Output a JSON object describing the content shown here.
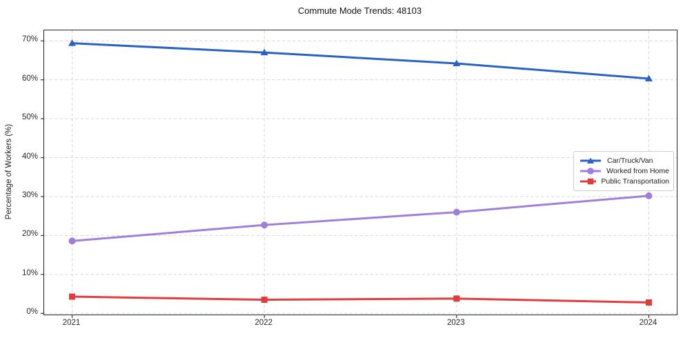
{
  "chart_data": {
    "type": "line",
    "title": "Commute Mode Trends: 48103",
    "xlabel": "",
    "ylabel": "Percentage of Workers (%)",
    "x": [
      2021,
      2022,
      2023,
      2024
    ],
    "x_tick_labels": [
      "2021",
      "2022",
      "2023",
      "2024"
    ],
    "y_ticks": [
      0,
      10,
      20,
      30,
      40,
      50,
      60,
      70
    ],
    "y_tick_suffix": "%",
    "xlim": [
      2020.8545,
      2024.1455
    ],
    "ylim": [
      -0.3,
      72.7
    ],
    "grid": true,
    "grid_style": "dashed",
    "legend_position": "center-right",
    "series": [
      {
        "name": "Car/Truck/Van",
        "values": [
          69.4,
          67.0,
          64.2,
          60.3
        ],
        "color": "#2a62c4",
        "marker": "triangle"
      },
      {
        "name": "Worked from Home",
        "values": [
          18.6,
          22.7,
          26.0,
          30.2
        ],
        "color": "#9f7fdb",
        "marker": "circle"
      },
      {
        "name": "Public Transportation",
        "values": [
          4.3,
          3.5,
          3.8,
          2.8
        ],
        "color": "#e03c3c",
        "marker": "square"
      }
    ]
  },
  "style_colors": {
    "grid": "#d7d7d7",
    "axis_edge": "#1f1f1f",
    "tick": "#333333",
    "text": "#262626"
  }
}
